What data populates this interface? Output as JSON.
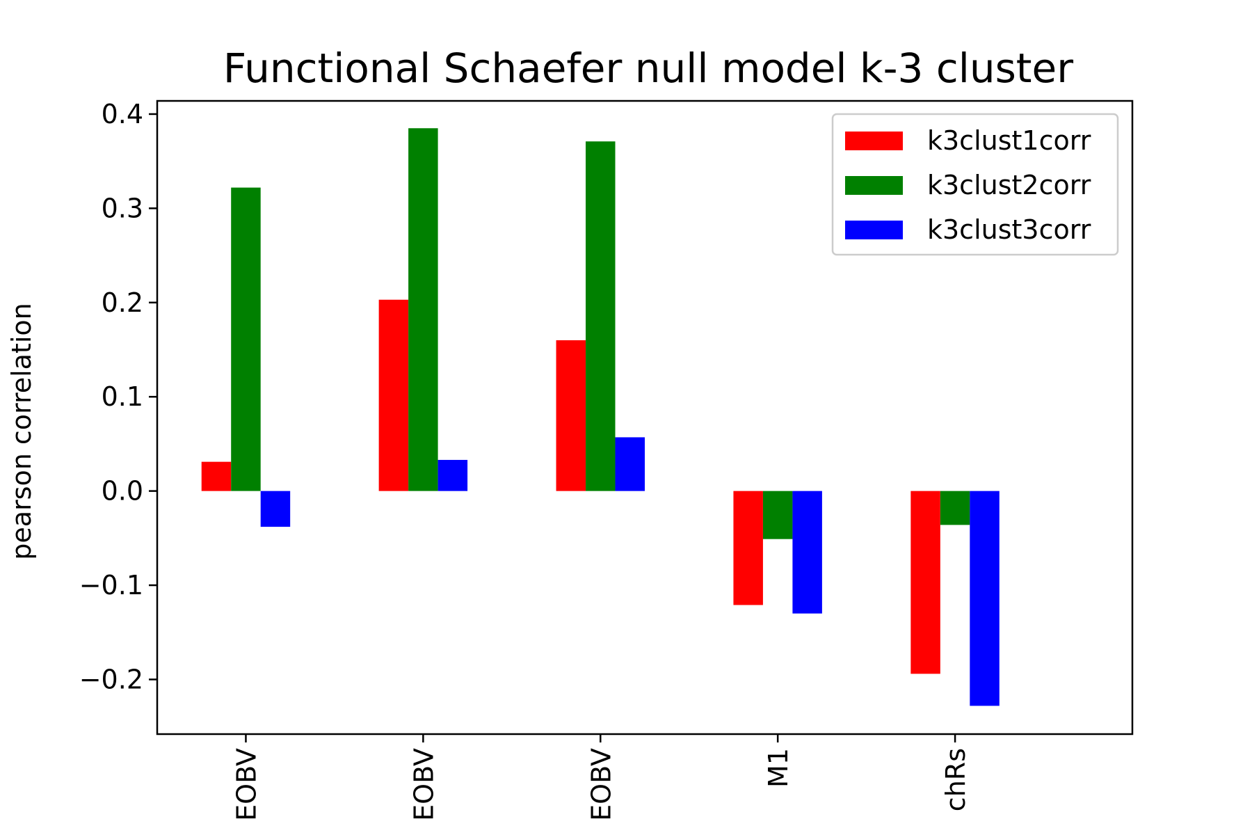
{
  "chart_data": {
    "type": "bar",
    "title": "Functional Schaefer null model k-3 cluster",
    "xlabel": "",
    "ylabel": "pearson correlation",
    "categories": [
      "EOBV",
      "EOBV",
      "EOBV",
      "M1",
      "chRs"
    ],
    "series": [
      {
        "name": "k3clust1corr",
        "color": "#ff0000",
        "values": [
          0.031,
          0.203,
          0.16,
          -0.121,
          -0.194
        ]
      },
      {
        "name": "k3clust2corr",
        "color": "#008000",
        "values": [
          0.322,
          0.385,
          0.371,
          -0.051,
          -0.036
        ]
      },
      {
        "name": "k3clust3corr",
        "color": "#0000ff",
        "values": [
          -0.038,
          0.033,
          0.057,
          -0.13,
          -0.228
        ]
      }
    ],
    "yticks": [
      -0.2,
      -0.1,
      0.0,
      0.1,
      0.2,
      0.3,
      0.4
    ],
    "ytick_labels": [
      "−0.2",
      "−0.1",
      "0.0",
      "0.1",
      "0.2",
      "0.3",
      "0.4"
    ],
    "ylim": [
      -0.258,
      0.414
    ],
    "grid": false,
    "legend_position": "top-right"
  }
}
